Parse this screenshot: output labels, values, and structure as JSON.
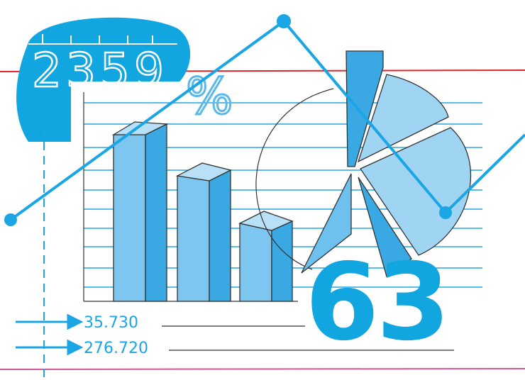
{
  "blob_number": "2359",
  "percent": "%",
  "big_number": "63",
  "annotations": [
    "35.730",
    "276.720"
  ]
}
